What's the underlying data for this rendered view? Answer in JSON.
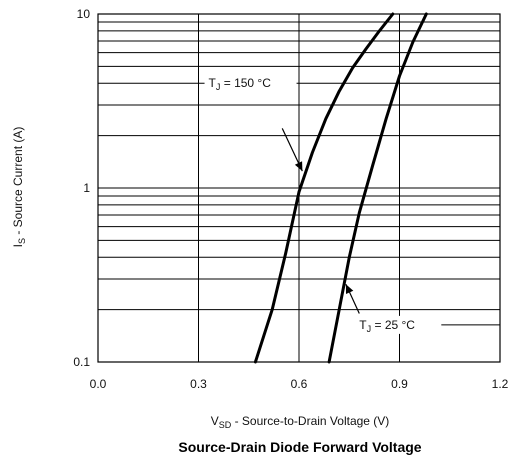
{
  "chart_data": {
    "type": "line",
    "title": "Source-Drain Diode Forward Voltage",
    "xlabel": {
      "main": "V",
      "sub": "SD",
      "rest": " - Source-to-Drain Voltage (V)"
    },
    "ylabel": {
      "main": "I",
      "sub": "S",
      "rest": " - Source Current (A)"
    },
    "xlim": [
      0.0,
      1.2
    ],
    "ylim": [
      0.1,
      10
    ],
    "yscale": "log",
    "grid": true,
    "x_ticks": [
      "0.0",
      "0.3",
      "0.6",
      "0.9",
      "1.2"
    ],
    "y_ticks": [
      "0.1",
      "1",
      "10"
    ],
    "series": [
      {
        "name": "T_J = 150 °C",
        "x": [
          0.47,
          0.52,
          0.56,
          0.6,
          0.64,
          0.68,
          0.72,
          0.76,
          0.8,
          0.84,
          0.88
        ],
        "y": [
          0.1,
          0.2,
          0.42,
          0.95,
          1.6,
          2.5,
          3.6,
          4.9,
          6.3,
          8.0,
          10.0
        ]
      },
      {
        "name": "T_J = 25 °C",
        "x": [
          0.69,
          0.72,
          0.75,
          0.78,
          0.82,
          0.86,
          0.9,
          0.94,
          0.98
        ],
        "y": [
          0.1,
          0.2,
          0.4,
          0.72,
          1.35,
          2.5,
          4.4,
          6.9,
          10.0
        ]
      }
    ],
    "annotations": [
      {
        "label_main": "T",
        "label_sub": "J",
        "label_rest": " = 150 °C",
        "series": 0,
        "point": [
          0.61,
          1.25
        ]
      },
      {
        "label_main": "T",
        "label_sub": "J",
        "label_rest": " = 25 °C",
        "series": 1,
        "point": [
          0.74,
          0.28
        ]
      }
    ]
  }
}
